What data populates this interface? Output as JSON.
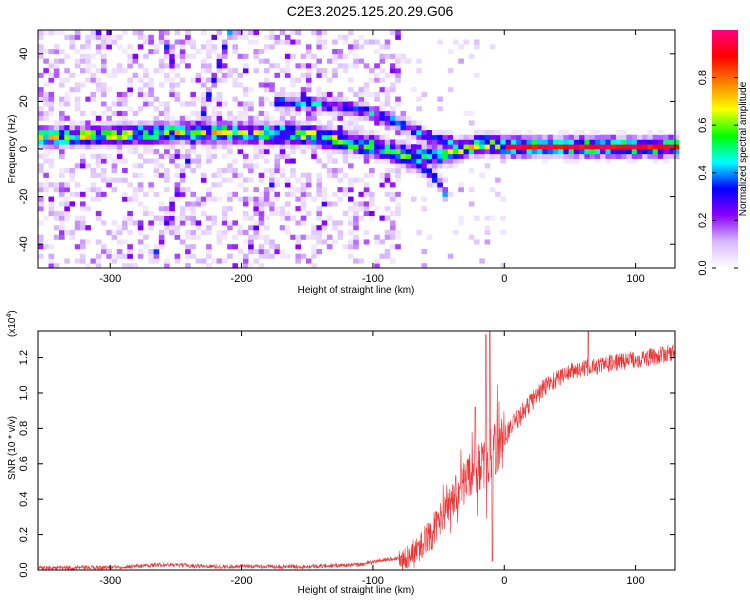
{
  "figure_title": "C2E3.2025.125.20.29.G06",
  "chart_data": [
    {
      "type": "heatmap",
      "title": "",
      "xlabel": "Height of straight line (km)",
      "ylabel": "Frequency (Hz)",
      "xlim": [
        -355,
        130
      ],
      "ylim": [
        -50,
        50
      ],
      "xticks": [
        -300,
        -200,
        -100,
        0,
        100
      ],
      "yticks": [
        -40,
        -20,
        0,
        20,
        40
      ],
      "colorbar": {
        "label": "Normalized spectral amplitude",
        "range": [
          0.0,
          1.0
        ],
        "ticks": [
          0.0,
          0.2,
          0.4,
          0.6,
          0.8
        ],
        "colors": [
          "#ffffff",
          "#d8b8ff",
          "#8a00ff",
          "#0000ff",
          "#00ffff",
          "#00ff00",
          "#ffff00",
          "#ff8000",
          "#ff0000",
          "#ff0080"
        ]
      },
      "ridges": [
        {
          "name": "main-line",
          "points": [
            [
              -355,
              4
            ],
            [
              -300,
              5
            ],
            [
              -260,
              6
            ],
            [
              -200,
              6
            ],
            [
              -150,
              5
            ],
            [
              -120,
              2
            ],
            [
              -100,
              0
            ],
            [
              -80,
              -3
            ],
            [
              -60,
              -4
            ],
            [
              -45,
              -3
            ],
            [
              -30,
              0
            ],
            [
              -15,
              1
            ],
            [
              0,
              0
            ],
            [
              50,
              0
            ],
            [
              130,
              0
            ]
          ],
          "amplitude": 0.55
        },
        {
          "name": "upper-branch",
          "points": [
            [
              -175,
              19
            ],
            [
              -140,
              18
            ],
            [
              -110,
              15
            ],
            [
              -90,
              12
            ],
            [
              -70,
              7
            ],
            [
              -55,
              3
            ],
            [
              -40,
              2
            ]
          ],
          "amplitude": 0.35
        },
        {
          "name": "lower-branch",
          "points": [
            [
              -75,
              -6
            ],
            [
              -60,
              -10
            ],
            [
              -50,
              -16
            ],
            [
              -45,
              -22
            ]
          ],
          "amplitude": 0.3
        },
        {
          "name": "diagonal-1",
          "points": [
            [
              -270,
              -50
            ],
            [
              -240,
              0
            ],
            [
              -210,
              50
            ]
          ],
          "amplitude": 0.3
        },
        {
          "name": "diagonal-2",
          "points": [
            [
              -200,
              -50
            ],
            [
              -170,
              0
            ],
            [
              -150,
              30
            ]
          ],
          "amplitude": 0.25
        },
        {
          "name": "diagonal-3",
          "points": [
            [
              -265,
              50
            ],
            [
              -255,
              35
            ]
          ],
          "amplitude": 0.3
        }
      ],
      "carrier": {
        "x_from": 0,
        "x_to": 130,
        "y": 0
      }
    },
    {
      "type": "line",
      "title": "",
      "xlabel": "Height of straight line (km)",
      "ylabel": "SNR (10 * v/v)",
      "scale_label": "(x10",
      "scale_exp": "4",
      "xlim": [
        -355,
        130
      ],
      "ylim": [
        0,
        1.35
      ],
      "xticks": [
        -300,
        -200,
        -100,
        0,
        100
      ],
      "yticks": [
        0.0,
        0.2,
        0.4,
        0.6,
        0.8,
        1.0,
        1.2
      ],
      "series_color": "#ee3333",
      "trend": [
        {
          "x": -355,
          "y": 0.01
        },
        {
          "x": -300,
          "y": 0.015
        },
        {
          "x": -260,
          "y": 0.03
        },
        {
          "x": -220,
          "y": 0.02
        },
        {
          "x": -150,
          "y": 0.02
        },
        {
          "x": -110,
          "y": 0.03
        },
        {
          "x": -90,
          "y": 0.06
        },
        {
          "x": -75,
          "y": 0.07
        },
        {
          "x": -65,
          "y": 0.12
        },
        {
          "x": -55,
          "y": 0.22
        },
        {
          "x": -45,
          "y": 0.32
        },
        {
          "x": -35,
          "y": 0.45
        },
        {
          "x": -25,
          "y": 0.55
        },
        {
          "x": -15,
          "y": 0.6
        },
        {
          "x": -5,
          "y": 0.7
        },
        {
          "x": 5,
          "y": 0.8
        },
        {
          "x": 15,
          "y": 0.9
        },
        {
          "x": 25,
          "y": 0.99
        },
        {
          "x": 35,
          "y": 1.06
        },
        {
          "x": 50,
          "y": 1.12
        },
        {
          "x": 70,
          "y": 1.15
        },
        {
          "x": 90,
          "y": 1.18
        },
        {
          "x": 110,
          "y": 1.2
        },
        {
          "x": 130,
          "y": 1.23
        }
      ],
      "spikes": [
        {
          "x": -14,
          "y": 1.33
        },
        {
          "x": -11,
          "y": 1.35
        },
        {
          "x": -22,
          "y": 0.92
        },
        {
          "x": -9,
          "y": 0.05
        },
        {
          "x": 64,
          "y": 1.35
        }
      ]
    }
  ]
}
